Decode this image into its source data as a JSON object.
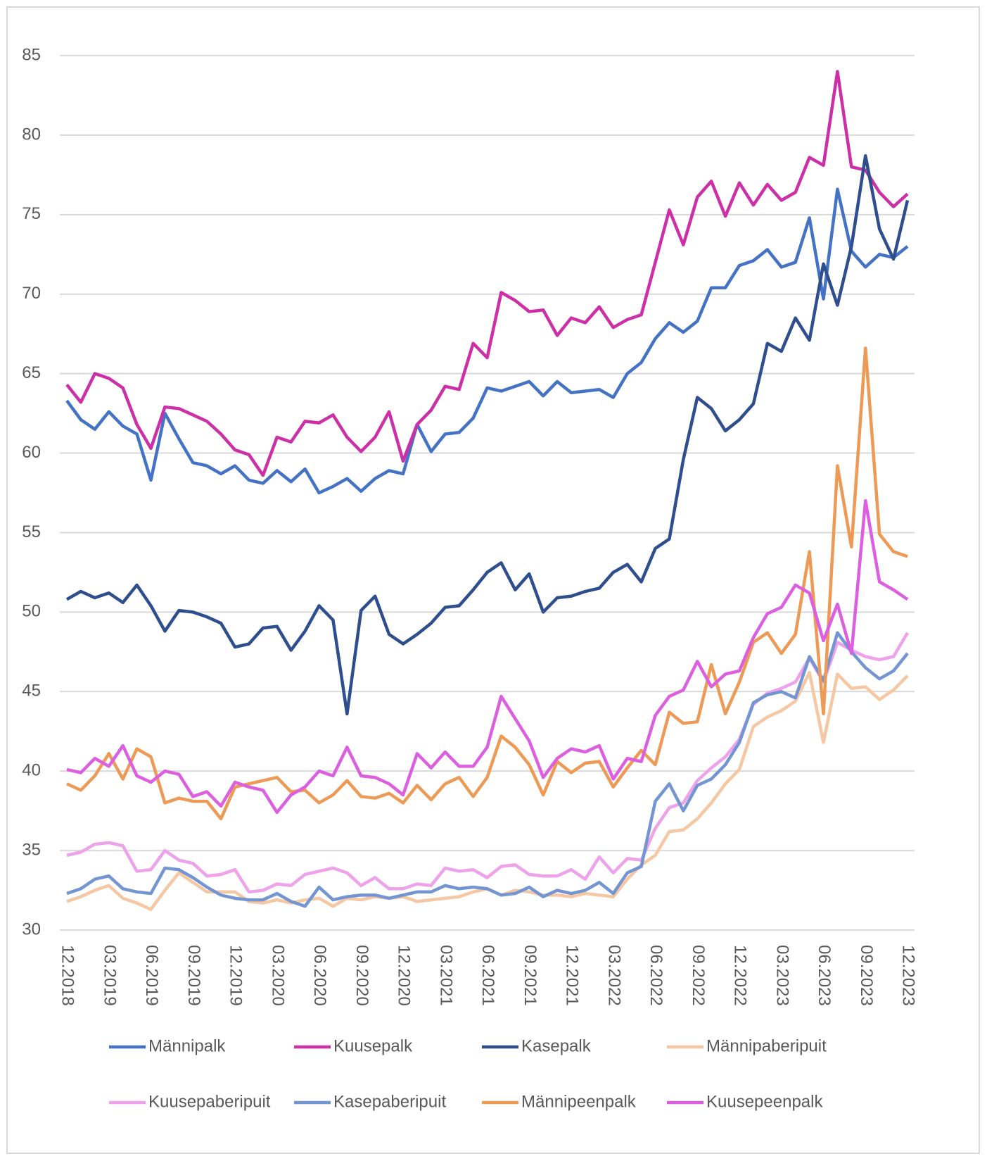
{
  "chart_data": {
    "type": "line",
    "categories": [
      "12.2018",
      null,
      null,
      "03.2019",
      null,
      null,
      "06.2019",
      null,
      null,
      "09.2019",
      null,
      null,
      "12.2019",
      null,
      null,
      "03.2020",
      null,
      null,
      "06.2020",
      null,
      null,
      "09.2020",
      null,
      null,
      "12.2020",
      null,
      null,
      "03.2021",
      null,
      null,
      "06.2021",
      null,
      null,
      "09.2021",
      null,
      null,
      "12.2021",
      null,
      null,
      "03.2022",
      null,
      null,
      "06.2022",
      null,
      null,
      "09.2022",
      null,
      null,
      "12.2022",
      null,
      null,
      "03.2023",
      null,
      null,
      "06.2023",
      null,
      null,
      "09.2023",
      null,
      null,
      "12.2023"
    ],
    "ylim": [
      30,
      85
    ],
    "yticks": [
      30,
      35,
      40,
      45,
      50,
      55,
      60,
      65,
      70,
      75,
      80,
      85
    ],
    "grid": true,
    "legend": "bottom",
    "series": [
      {
        "name": "Männipalk",
        "color": "#4472c4",
        "values": [
          63.3,
          62.1,
          61.5,
          62.6,
          61.7,
          61.2,
          58.3,
          62.5,
          60.9,
          59.4,
          59.2,
          58.7,
          59.2,
          58.3,
          58.1,
          58.9,
          58.2,
          59.0,
          57.5,
          57.9,
          58.4,
          57.6,
          58.4,
          58.9,
          58.7,
          61.8,
          60.1,
          61.2,
          61.3,
          62.2,
          64.1,
          63.9,
          64.2,
          64.5,
          63.6,
          64.5,
          63.8,
          63.9,
          64.0,
          63.5,
          65.0,
          65.7,
          67.2,
          68.2,
          67.6,
          68.3,
          70.4,
          70.4,
          71.8,
          72.1,
          72.8,
          71.7,
          72.0,
          74.8,
          69.7,
          76.6,
          72.7,
          71.7,
          72.5,
          72.3,
          73.0
        ]
      },
      {
        "name": "Kuusepalk",
        "color": "#cc2fa6",
        "values": [
          64.3,
          63.2,
          65.0,
          64.7,
          64.1,
          61.8,
          60.3,
          62.9,
          62.8,
          62.4,
          62.0,
          61.2,
          60.2,
          59.9,
          58.6,
          61.0,
          60.7,
          62.0,
          61.9,
          62.4,
          61.0,
          60.1,
          61.0,
          62.6,
          59.5,
          61.8,
          62.7,
          64.2,
          64.0,
          66.9,
          66.0,
          70.1,
          69.6,
          68.9,
          69.0,
          67.4,
          68.5,
          68.2,
          69.2,
          67.9,
          68.4,
          68.7,
          72.0,
          75.3,
          73.1,
          76.1,
          77.1,
          74.9,
          77.0,
          75.6,
          76.9,
          75.9,
          76.4,
          78.6,
          78.1,
          84.0,
          78.0,
          77.8,
          76.4,
          75.5,
          76.3
        ]
      },
      {
        "name": "Kasepalk",
        "color": "#2e4e8e",
        "values": [
          50.8,
          51.3,
          50.9,
          51.2,
          50.6,
          51.7,
          50.4,
          48.8,
          50.1,
          50.0,
          49.7,
          49.3,
          47.8,
          48.0,
          49.0,
          49.1,
          47.6,
          48.8,
          50.4,
          49.5,
          43.6,
          50.1,
          51.0,
          48.6,
          48.0,
          48.6,
          49.3,
          50.3,
          50.4,
          51.4,
          52.5,
          53.1,
          51.4,
          52.4,
          50.0,
          50.9,
          51.0,
          51.3,
          51.5,
          52.5,
          53.0,
          51.9,
          54.0,
          54.6,
          59.6,
          63.5,
          62.8,
          61.4,
          62.1,
          63.1,
          66.9,
          66.4,
          68.5,
          67.1,
          71.9,
          69.3,
          73.0,
          78.7,
          74.1,
          72.2,
          75.9
        ]
      },
      {
        "name": "Männipaberipuit",
        "color": "#f5c7a2",
        "values": [
          31.8,
          32.1,
          32.5,
          32.8,
          32.0,
          31.7,
          31.3,
          32.5,
          33.6,
          33.0,
          32.4,
          32.4,
          32.4,
          31.8,
          31.7,
          31.9,
          31.7,
          31.9,
          32.0,
          31.5,
          32.0,
          31.9,
          32.1,
          32.0,
          32.1,
          31.8,
          31.9,
          32.0,
          32.1,
          32.4,
          32.6,
          32.2,
          32.5,
          32.4,
          32.2,
          32.2,
          32.1,
          32.3,
          32.2,
          32.1,
          33.2,
          34.1,
          34.7,
          36.2,
          36.3,
          37.0,
          38.0,
          39.2,
          40.1,
          42.8,
          43.4,
          43.8,
          44.4,
          46.2,
          41.8,
          46.1,
          45.2,
          45.3,
          44.5,
          45.1,
          46.0
        ]
      },
      {
        "name": "Kuusepaberipuit",
        "color": "#eea2ea",
        "values": [
          34.7,
          34.9,
          35.4,
          35.5,
          35.3,
          33.7,
          33.8,
          35.0,
          34.4,
          34.2,
          33.4,
          33.5,
          33.8,
          32.4,
          32.5,
          32.9,
          32.8,
          33.5,
          33.7,
          33.9,
          33.6,
          32.8,
          33.3,
          32.6,
          32.6,
          32.9,
          32.8,
          33.9,
          33.7,
          33.8,
          33.3,
          34.0,
          34.1,
          33.5,
          33.4,
          33.4,
          33.8,
          33.2,
          34.6,
          33.6,
          34.5,
          34.4,
          36.4,
          37.7,
          38.0,
          39.4,
          40.2,
          40.9,
          42.0,
          44.2,
          44.9,
          45.2,
          45.6,
          47.1,
          45.6,
          48.1,
          47.6,
          47.2,
          47.0,
          47.2,
          48.7
        ]
      },
      {
        "name": "Kasepaberipuit",
        "color": "#7395d2",
        "values": [
          32.3,
          32.6,
          33.2,
          33.4,
          32.6,
          32.4,
          32.3,
          33.9,
          33.8,
          33.3,
          32.7,
          32.2,
          32.0,
          31.9,
          31.9,
          32.3,
          31.8,
          31.5,
          32.7,
          31.9,
          32.1,
          32.2,
          32.2,
          32.0,
          32.2,
          32.4,
          32.4,
          32.8,
          32.6,
          32.7,
          32.6,
          32.2,
          32.3,
          32.7,
          32.1,
          32.5,
          32.3,
          32.5,
          33.0,
          32.3,
          33.6,
          34.0,
          38.1,
          39.2,
          37.5,
          39.1,
          39.5,
          40.4,
          41.8,
          44.3,
          44.8,
          45.0,
          44.6,
          47.2,
          45.7,
          48.7,
          47.5,
          46.5,
          45.8,
          46.3,
          47.4
        ]
      },
      {
        "name": "Männipeenpalk",
        "color": "#ed9a56",
        "values": [
          39.2,
          38.8,
          39.7,
          41.1,
          39.5,
          41.4,
          40.9,
          38.0,
          38.3,
          38.1,
          38.1,
          37.0,
          39.0,
          39.2,
          39.4,
          39.6,
          38.7,
          38.8,
          38.0,
          38.5,
          39.4,
          38.4,
          38.3,
          38.6,
          38.0,
          39.1,
          38.2,
          39.2,
          39.6,
          38.4,
          39.6,
          42.2,
          41.5,
          40.4,
          38.5,
          40.6,
          39.9,
          40.5,
          40.6,
          39.0,
          40.2,
          41.3,
          40.4,
          43.7,
          43.0,
          43.1,
          46.7,
          43.6,
          45.6,
          48.1,
          48.7,
          47.4,
          48.6,
          53.8,
          43.6,
          59.2,
          54.1,
          66.6,
          54.9,
          53.8,
          53.5
        ]
      },
      {
        "name": "Kuusepeenpalk",
        "color": "#dc5fe0",
        "values": [
          40.1,
          39.9,
          40.8,
          40.3,
          41.6,
          39.7,
          39.3,
          40.0,
          39.8,
          38.4,
          38.7,
          37.8,
          39.3,
          39.0,
          38.8,
          37.4,
          38.5,
          39.0,
          40.0,
          39.7,
          41.5,
          39.7,
          39.6,
          39.2,
          38.5,
          41.1,
          40.2,
          41.2,
          40.3,
          40.3,
          41.5,
          44.7,
          43.3,
          41.9,
          39.6,
          40.8,
          41.4,
          41.2,
          41.6,
          39.5,
          40.8,
          40.6,
          43.5,
          44.7,
          45.1,
          46.9,
          45.3,
          46.1,
          46.3,
          48.4,
          49.9,
          50.3,
          51.7,
          51.2,
          48.2,
          50.5,
          47.4,
          57.0,
          51.9,
          51.4,
          50.8
        ]
      }
    ]
  }
}
